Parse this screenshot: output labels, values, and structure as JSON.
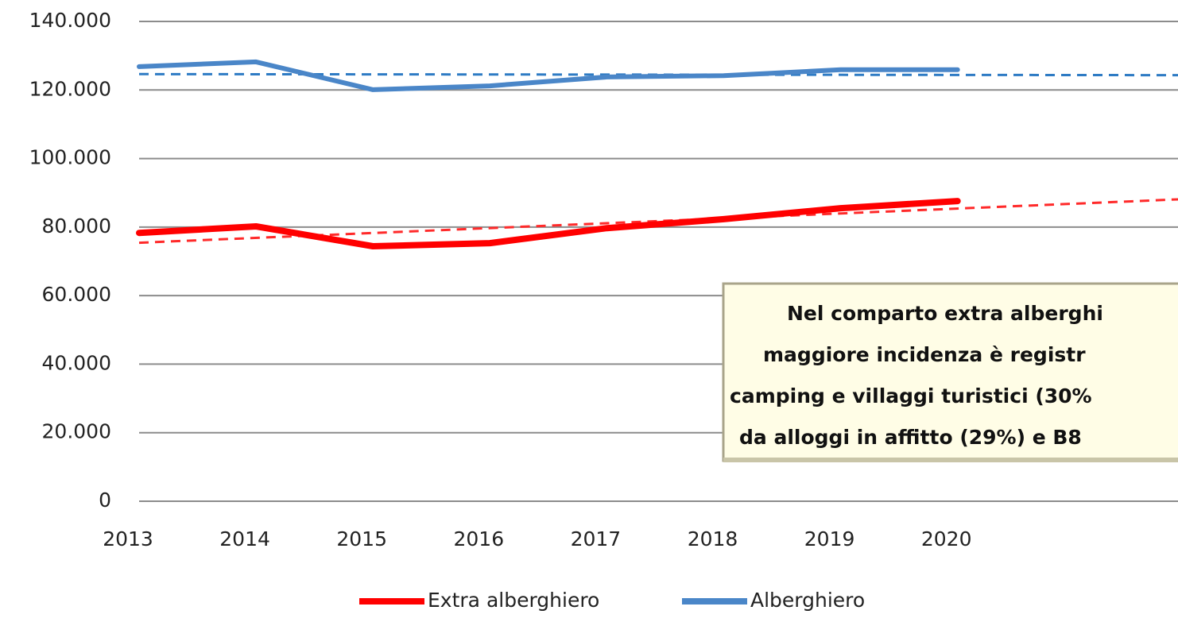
{
  "chart_data": {
    "type": "line",
    "categories": [
      "2013",
      "2014",
      "2015",
      "2016",
      "2017",
      "2018",
      "2019",
      "2020",
      null,
      null
    ],
    "series": [
      {
        "name": "Extra alberghiero",
        "color": "#ff0000",
        "trend_color": "#ff2a2a",
        "values": [
          78300,
          80200,
          74400,
          75300,
          79700,
          82300,
          85500,
          87600,
          null,
          null
        ]
      },
      {
        "name": "Alberghiero",
        "color": "#4a86c8",
        "trend_color": "#2e7bc4",
        "values": [
          126800,
          128200,
          120100,
          121200,
          123800,
          124200,
          125900,
          125900,
          null,
          null
        ]
      }
    ],
    "trendline": true,
    "ylim": [
      0,
      140000
    ],
    "yticks": [
      {
        "value": 0,
        "label": "0"
      },
      {
        "value": 20000,
        "label": "20.000"
      },
      {
        "value": 40000,
        "label": "40.000"
      },
      {
        "value": 60000,
        "label": "60.000"
      },
      {
        "value": 80000,
        "label": "80.000"
      },
      {
        "value": 100000,
        "label": "100.000"
      },
      {
        "value": 120000,
        "label": "120.000"
      },
      {
        "value": 140000,
        "label": "140.000"
      }
    ],
    "grid": true,
    "legend": "bottom",
    "annotation": [
      "Nel comparto extra alberghi",
      "maggiore incidenza è registr",
      "camping e villaggi turistici (30%",
      "da alloggi in affitto (29%) e B8"
    ]
  }
}
